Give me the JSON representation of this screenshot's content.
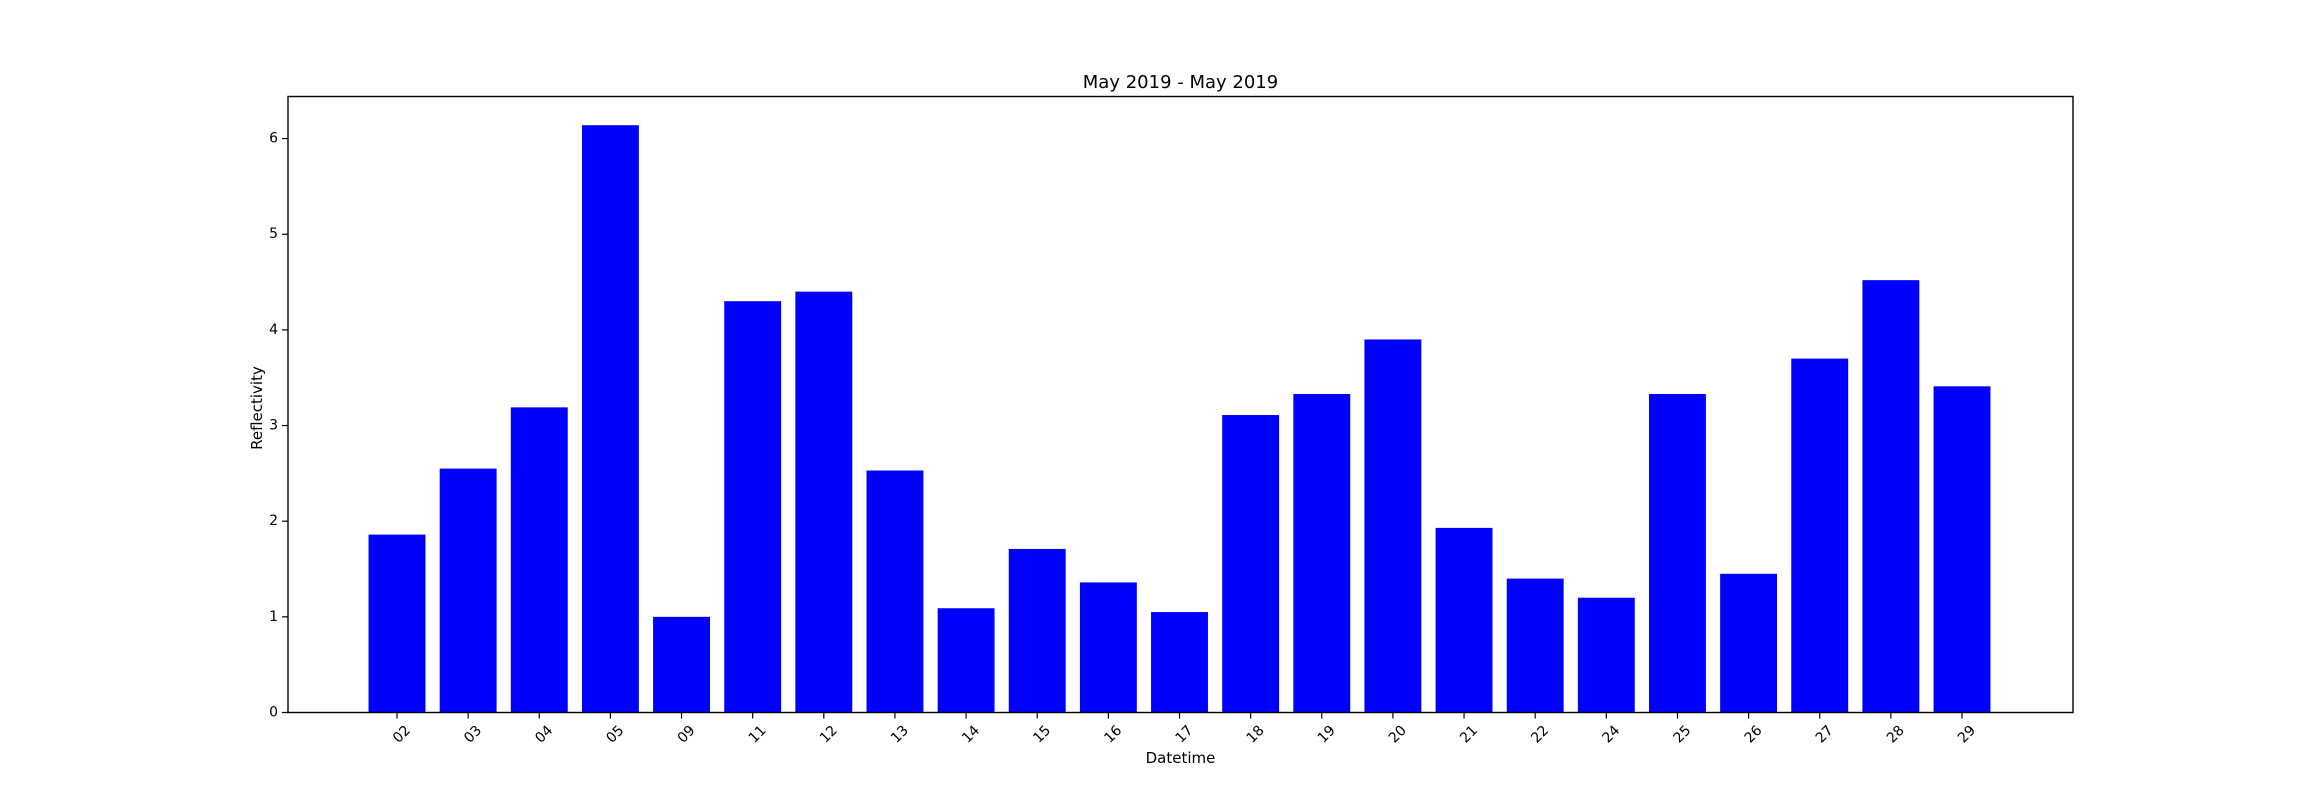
{
  "chart_data": {
    "type": "bar",
    "title": "May 2019 - May 2019",
    "xlabel": "Datetime",
    "ylabel": "Reflectivity",
    "categories": [
      "02",
      "03",
      "04",
      "05",
      "09",
      "11",
      "12",
      "13",
      "14",
      "15",
      "16",
      "17",
      "18",
      "19",
      "20",
      "21",
      "22",
      "24",
      "25",
      "26",
      "27",
      "28",
      "29"
    ],
    "values": [
      1.86,
      2.55,
      3.19,
      6.14,
      1.0,
      4.3,
      4.4,
      2.53,
      1.09,
      1.71,
      1.36,
      1.05,
      3.11,
      3.33,
      3.9,
      1.93,
      1.4,
      1.2,
      3.33,
      1.45,
      3.7,
      4.52,
      3.41
    ],
    "ylim": [
      0,
      6.44
    ],
    "yticks": [
      0,
      1,
      2,
      3,
      4,
      5,
      6
    ],
    "bar_color": "#0000ff",
    "grid": false,
    "legend": "none"
  }
}
